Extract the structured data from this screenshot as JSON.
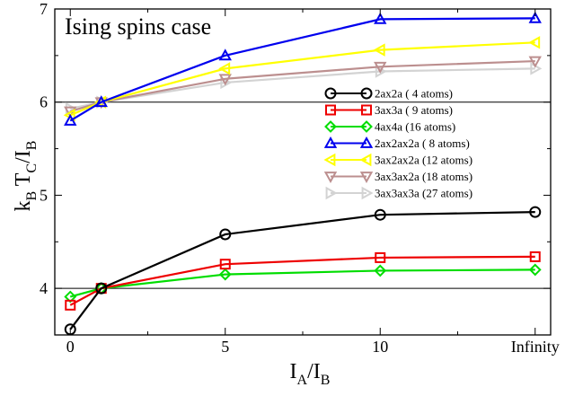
{
  "chart_data": {
    "type": "line",
    "annotation": "Ising spins case",
    "xlabel": {
      "main": "I",
      "sub1": "A",
      "mid": "/I",
      "sub2": "B"
    },
    "ylabel": {
      "p1": "k",
      "s1": "B",
      "p2": " T",
      "s2": "C",
      "p3": "/I",
      "s3": "B"
    },
    "x_ticks": [
      {
        "pos": 0,
        "label": "0"
      },
      {
        "pos": 5,
        "label": "5"
      },
      {
        "pos": 10,
        "label": "10"
      },
      {
        "pos": 15,
        "label": "Infinity"
      }
    ],
    "y_ticks": [
      4,
      5,
      6,
      7
    ],
    "xlim": [
      -0.5,
      15.5
    ],
    "ylim": [
      3.5,
      7
    ],
    "reference_lines_y": [
      4,
      6
    ],
    "x": [
      0,
      1,
      5,
      10,
      15
    ],
    "legend_position": "right",
    "series": [
      {
        "name": "2ax2a ( 4 atoms)",
        "color": "#000000",
        "marker": "circle",
        "values": [
          3.56,
          4.0,
          4.58,
          4.79,
          4.82
        ]
      },
      {
        "name": "3ax3a ( 9 atoms)",
        "color": "#ee0000",
        "marker": "square",
        "values": [
          3.82,
          4.0,
          4.26,
          4.33,
          4.34
        ]
      },
      {
        "name": "4ax4a (16 atoms)",
        "color": "#00dd00",
        "marker": "diamond",
        "values": [
          3.91,
          4.0,
          4.15,
          4.19,
          4.2
        ]
      },
      {
        "name": "2ax2ax2a ( 8 atoms)",
        "color": "#0000ee",
        "marker": "triangle-up",
        "values": [
          5.8,
          6.0,
          6.5,
          6.89,
          6.9
        ]
      },
      {
        "name": "3ax2ax2a (12 atoms)",
        "color": "#ffff00",
        "marker": "triangle-left",
        "values": [
          5.86,
          6.0,
          6.36,
          6.56,
          6.64
        ]
      },
      {
        "name": "3ax3ax2a (18 atoms)",
        "color": "#bc8f8f",
        "marker": "triangle-down",
        "values": [
          5.9,
          6.0,
          6.25,
          6.38,
          6.44
        ]
      },
      {
        "name": "3ax3ax3a (27 atoms)",
        "color": "#d3d3d3",
        "marker": "triangle-right",
        "values": [
          5.93,
          6.0,
          6.21,
          6.33,
          6.36
        ]
      }
    ]
  }
}
